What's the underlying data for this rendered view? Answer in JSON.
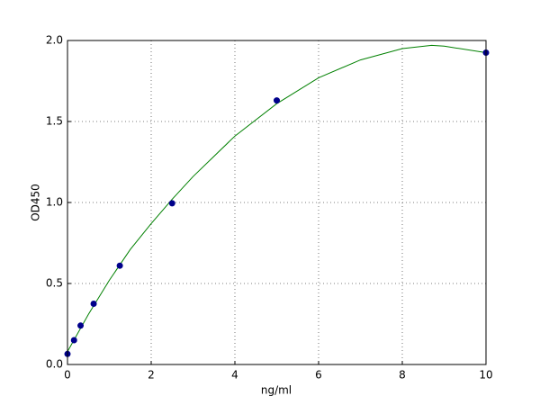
{
  "chart_data": {
    "type": "scatter",
    "x_label": "ng/ml",
    "y_label": "OD450",
    "xlim": [
      0,
      10
    ],
    "ylim": [
      0,
      2
    ],
    "xticks": [
      0,
      2,
      4,
      6,
      8,
      10
    ],
    "yticks": [
      {
        "value": 0,
        "label": "0.0"
      },
      {
        "value": 0.5,
        "label": "0.5"
      },
      {
        "value": 1,
        "label": "1.0"
      },
      {
        "value": 1.5,
        "label": "1.5"
      },
      {
        "value": 2,
        "label": "2.0"
      }
    ],
    "grid": true,
    "series": [
      {
        "type": "line",
        "color": "#008000",
        "x": [
          0,
          0.5,
          1,
          1.5,
          2,
          2.5,
          3,
          4,
          5,
          6,
          7,
          8,
          8.7,
          9,
          10
        ],
        "values": [
          0.08,
          0.31,
          0.52,
          0.71,
          0.87,
          1.02,
          1.16,
          1.41,
          1.61,
          1.77,
          1.88,
          1.95,
          1.97,
          1.965,
          1.925
        ]
      },
      {
        "type": "scatter",
        "color": "#00008b",
        "x": [
          0,
          0.156,
          0.3125,
          0.625,
          1.25,
          2.5,
          5,
          10
        ],
        "values": [
          0.065,
          0.15,
          0.24,
          0.375,
          0.61,
          0.995,
          1.63,
          1.925
        ]
      }
    ]
  }
}
